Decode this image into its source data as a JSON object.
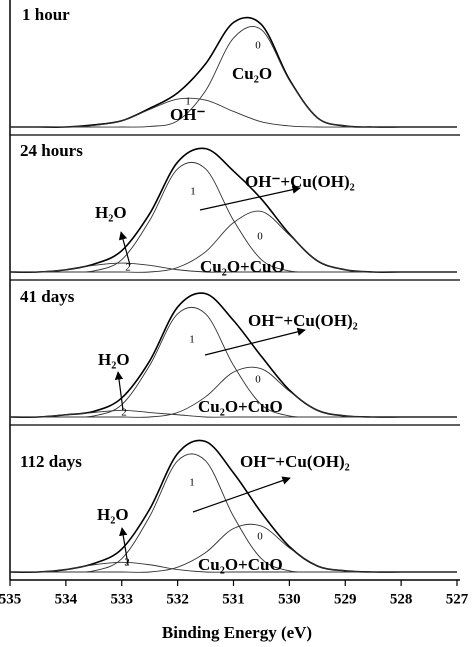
{
  "chart_data": [
    {
      "type": "line",
      "title": "1 hour",
      "annotations": [
        "Cu₂O",
        "OH⁻"
      ],
      "x": [
        535,
        534.5,
        534,
        533.5,
        533,
        532.5,
        532,
        531.5,
        531,
        530.5,
        530,
        529.5,
        529,
        528.5,
        528,
        527.5,
        527
      ],
      "xlim": [
        535,
        527
      ],
      "ylim": [
        0,
        115
      ],
      "series": [
        {
          "color": "#000000",
          "values": [
            0,
            0,
            0,
            2,
            6,
            18,
            33,
            61,
            101,
            99,
            46,
            9,
            1,
            0,
            0,
            0,
            0
          ]
        },
        {
          "name": "0",
          "color": "#333333",
          "values": [
            0,
            0,
            0,
            0,
            0,
            0.5,
            6,
            35,
            86,
            94,
            45,
            9,
            1,
            0,
            0,
            0,
            0
          ]
        },
        {
          "name": "1",
          "color": "#333333",
          "values": [
            0,
            0,
            0,
            1.5,
            6,
            17,
            27,
            26,
            15,
            5,
            1,
            0,
            0,
            0,
            0,
            0,
            0
          ]
        }
      ]
    },
    {
      "type": "line",
      "title": "24 hours",
      "annotations": [
        "OH⁻+Cu(OH)₂",
        "H₂O",
        "Cu₂O+CuO"
      ],
      "x": [
        535,
        534.5,
        534,
        533.5,
        533,
        532.5,
        532,
        531.5,
        531,
        530.5,
        530,
        529.5,
        529,
        528.5,
        528,
        527.5,
        527
      ],
      "xlim": [
        535,
        527
      ],
      "ylim": [
        0,
        115
      ],
      "series": [
        {
          "color": "#000000",
          "values": [
            0,
            0,
            2,
            7,
            19,
            52,
            98,
            110,
            90,
            65,
            34,
            10,
            2,
            0,
            0,
            0,
            0
          ]
        },
        {
          "name": "1",
          "color": "#333333",
          "values": [
            0,
            0,
            0,
            1,
            11,
            46,
            92,
            92,
            46,
            11,
            1,
            0,
            0,
            0,
            0,
            0,
            0
          ]
        },
        {
          "name": "0",
          "color": "#333333",
          "values": [
            0,
            0,
            0,
            0,
            0,
            0,
            4,
            18,
            44,
            54,
            33,
            10,
            2,
            0,
            0,
            0,
            0
          ]
        },
        {
          "name": "2",
          "color": "#333333",
          "values": [
            0,
            0,
            2,
            6,
            8,
            6,
            2,
            0,
            0,
            0,
            0,
            0,
            0,
            0,
            0,
            0,
            0
          ]
        }
      ]
    },
    {
      "type": "line",
      "title": "41 days",
      "annotations": [
        "OH⁻+Cu(OH)₂",
        "H₂O",
        "Cu₂O+CuO"
      ],
      "x": [
        535,
        534.5,
        534,
        533.5,
        533,
        532.5,
        532,
        531.5,
        531,
        530.5,
        530,
        529.5,
        529,
        528.5,
        528,
        527.5,
        527
      ],
      "xlim": [
        535,
        527
      ],
      "ylim": [
        0,
        115
      ],
      "series": [
        {
          "color": "#000000",
          "values": [
            0,
            0,
            2,
            5,
            17,
            50,
            98,
            110,
            86,
            54,
            24,
            6,
            1,
            0,
            0,
            0,
            0
          ]
        },
        {
          "name": "1",
          "color": "#333333",
          "values": [
            0,
            0,
            0,
            1,
            11,
            46,
            92,
            92,
            46,
            11,
            1,
            0,
            0,
            0,
            0,
            0,
            0
          ]
        },
        {
          "name": "0",
          "color": "#333333",
          "values": [
            0,
            0,
            0,
            0,
            0,
            0,
            4,
            18,
            40,
            43,
            23,
            6,
            1,
            0,
            0,
            0,
            0
          ]
        },
        {
          "name": "2",
          "color": "#333333",
          "values": [
            0,
            0,
            2,
            4,
            6,
            4,
            2,
            0,
            0,
            0,
            0,
            0,
            0,
            0,
            0,
            0,
            0
          ]
        }
      ]
    },
    {
      "type": "line",
      "title": "112 days",
      "annotations": [
        "OH⁻+Cu(OH)₂",
        "H₂O",
        "Cu₂O+CuO"
      ],
      "x": [
        535,
        534.5,
        534,
        533.5,
        533,
        532.5,
        532,
        531.5,
        531,
        530.5,
        530,
        529.5,
        529,
        528.5,
        528,
        527.5,
        527
      ],
      "xlim": [
        535,
        527
      ],
      "ylim": [
        0,
        115
      ],
      "xticks": [
        535,
        534,
        533,
        532,
        531,
        530,
        529,
        528,
        527
      ],
      "xlabel": "Binding Energy (eV)",
      "series": [
        {
          "color": "#000000",
          "values": [
            0,
            0,
            2,
            7,
            19,
            52,
            98,
            108,
            82,
            49,
            21,
            5,
            1,
            0,
            0,
            0,
            0
          ]
        },
        {
          "name": "1",
          "color": "#333333",
          "values": [
            0,
            0,
            0,
            1,
            11,
            46,
            92,
            92,
            46,
            11,
            1,
            0,
            0,
            0,
            0,
            0,
            0
          ]
        },
        {
          "name": "0",
          "color": "#333333",
          "values": [
            0,
            0,
            0,
            0,
            0,
            0,
            4,
            16,
            36,
            38,
            20,
            5,
            1,
            0,
            0,
            0,
            0
          ]
        },
        {
          "name": "2",
          "color": "#333333",
          "values": [
            0,
            0,
            2,
            6,
            8,
            6,
            2,
            0,
            0,
            0,
            0,
            0,
            0,
            0,
            0,
            0,
            0
          ]
        }
      ]
    }
  ]
}
